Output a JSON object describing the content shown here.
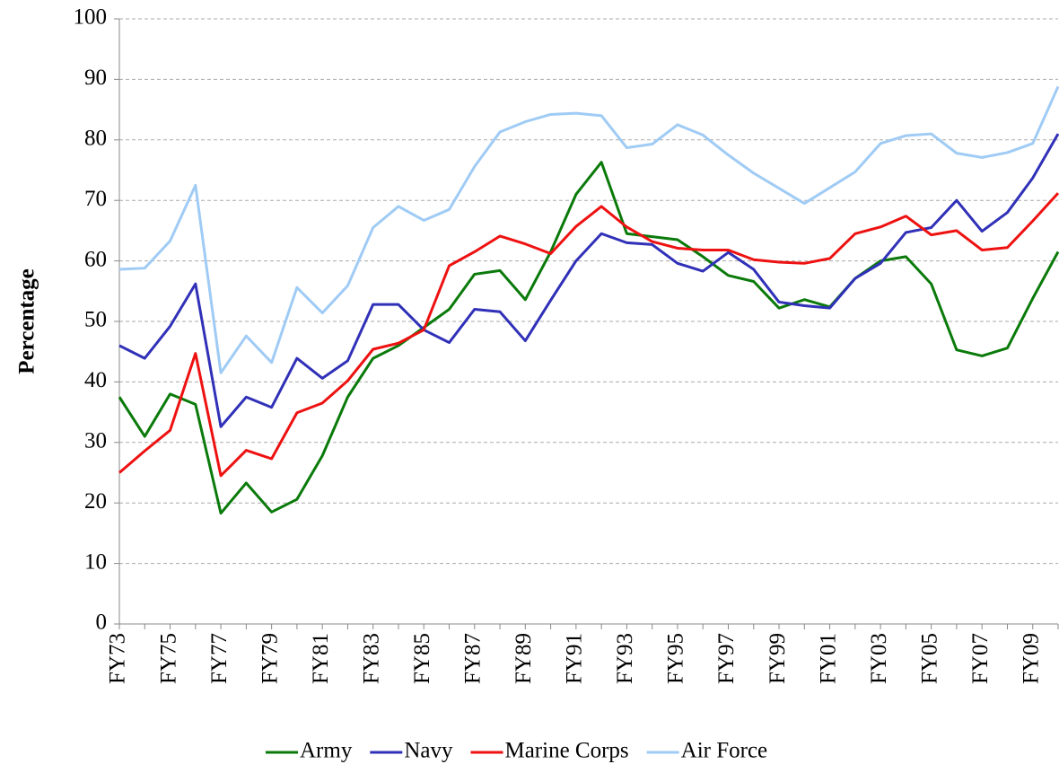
{
  "chart_data": {
    "type": "line",
    "y_label": "Percentage",
    "categories": [
      "FY73",
      null,
      "FY75",
      null,
      "FY77",
      null,
      "FY79",
      null,
      "FY81",
      null,
      "FY83",
      null,
      "FY85",
      null,
      "FY87",
      null,
      "FY89",
      null,
      "FY91",
      null,
      "FY93",
      null,
      "FY95",
      null,
      "FY97",
      null,
      "FY99",
      null,
      "FY01",
      null,
      "FY03",
      null,
      "FY05",
      null,
      "FY07",
      null,
      "FY09",
      null
    ],
    "series": [
      {
        "name": "Army",
        "color": "#0a7a0a",
        "values": [
          37.5,
          31,
          38,
          36.3,
          18.3,
          23.3,
          18.5,
          20.6,
          27.8,
          37.5,
          43.9,
          46,
          49,
          52,
          57.8,
          58.4,
          53.6,
          61.5,
          71,
          76.3,
          64.5,
          64,
          63.5,
          60.7,
          57.6,
          56.6,
          52.2,
          53.6,
          52.4,
          57.1,
          60,
          60.7,
          56.2,
          45.3,
          44.3,
          45.6,
          53.8,
          61.5
        ]
      },
      {
        "name": "Navy",
        "color": "#3030b8",
        "values": [
          46,
          43.9,
          49.2,
          56.2,
          32.6,
          37.5,
          35.8,
          43.9,
          40.6,
          43.5,
          52.8,
          52.8,
          48.6,
          46.5,
          52,
          51.6,
          46.8,
          53.5,
          60,
          64.5,
          63,
          62.7,
          59.6,
          58.3,
          61.4,
          58.6,
          53.2,
          52.6,
          52.2,
          57.1,
          59.6,
          64.7,
          65.5,
          70,
          64.9,
          68,
          73.7,
          81
        ]
      },
      {
        "name": "Marine Corps",
        "color": "#ee1111",
        "values": [
          25,
          28.6,
          32,
          44.7,
          24.5,
          28.7,
          27.3,
          34.9,
          36.5,
          40.2,
          45.4,
          46.4,
          48.6,
          59.2,
          61.5,
          64.1,
          62.8,
          61.2,
          65.7,
          69,
          65.6,
          63.2,
          62.1,
          61.8,
          61.8,
          60.2,
          59.8,
          59.6,
          60.4,
          64.5,
          65.6,
          67.4,
          64.3,
          65,
          61.8,
          62.2,
          66.6,
          71.2
        ]
      },
      {
        "name": "Air Force",
        "color": "#9fcbf5",
        "values": [
          58.6,
          58.8,
          63.3,
          72.5,
          41.5,
          47.6,
          43.2,
          55.6,
          51.4,
          55.9,
          65.5,
          69,
          66.7,
          68.5,
          75.6,
          81.3,
          83,
          84.2,
          84.4,
          84,
          78.7,
          79.3,
          82.5,
          80.8,
          77.5,
          74.5,
          72,
          69.5,
          72.1,
          74.7,
          79.4,
          80.7,
          81,
          77.8,
          77.1,
          77.9,
          79.4,
          88.8
        ]
      }
    ],
    "ylim": [
      0,
      100
    ],
    "yticks": [
      0,
      10,
      20,
      30,
      40,
      50,
      60,
      70,
      80,
      90,
      100
    ],
    "grid": true,
    "legend": "bottom"
  }
}
